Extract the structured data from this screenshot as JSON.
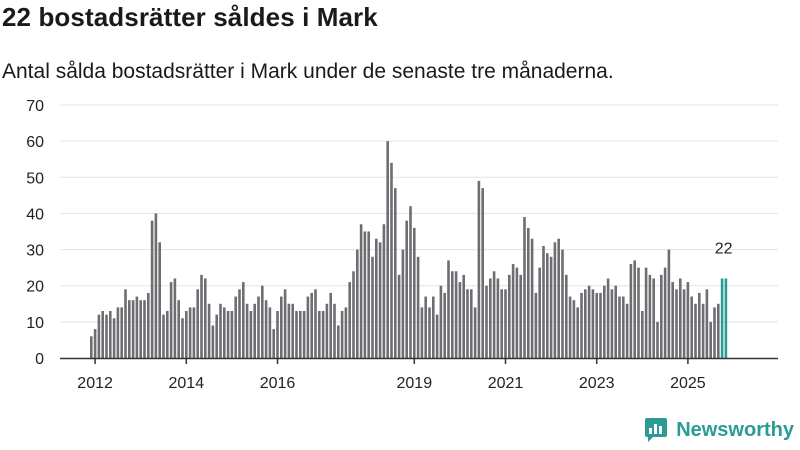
{
  "title": "22 bostadsrätter såldes i Mark",
  "subtitle": "Antal sålda bostadsrätter i Mark under de senaste tre månaderna.",
  "brand": {
    "name": "Newsworthy",
    "color": "#2b9b94"
  },
  "colors": {
    "bar": "#6e6d72",
    "highlight": "#2b9b94",
    "grid": "#e3e3e3",
    "axis": "#333333"
  },
  "chart_data": {
    "type": "bar",
    "title": "22 bostadsrätter såldes i Mark",
    "xlabel": "",
    "ylabel": "",
    "ylim": [
      0,
      70
    ],
    "yticks": [
      0,
      10,
      20,
      30,
      40,
      50,
      60,
      70
    ],
    "grid": true,
    "x_tick_labels": [
      {
        "label": "2012",
        "index": 1
      },
      {
        "label": "2014",
        "index": 25
      },
      {
        "label": "2016",
        "index": 49
      },
      {
        "label": "2019",
        "index": 85
      },
      {
        "label": "2021",
        "index": 109
      },
      {
        "label": "2023",
        "index": 133
      },
      {
        "label": "2025",
        "index": 157
      }
    ],
    "values": [
      6,
      8,
      12,
      13,
      12,
      13,
      11,
      14,
      14,
      19,
      16,
      16,
      17,
      16,
      16,
      18,
      38,
      40,
      32,
      12,
      13,
      21,
      22,
      16,
      11,
      13,
      14,
      14,
      19,
      23,
      22,
      15,
      9,
      12,
      15,
      14,
      13,
      13,
      17,
      19,
      21,
      15,
      13,
      15,
      17,
      20,
      16,
      14,
      8,
      13,
      17,
      19,
      15,
      15,
      13,
      13,
      13,
      17,
      18,
      19,
      13,
      13,
      15,
      18,
      15,
      9,
      13,
      14,
      21,
      24,
      30,
      37,
      35,
      35,
      28,
      33,
      32,
      37,
      60,
      54,
      47,
      23,
      30,
      38,
      42,
      36,
      28,
      14,
      17,
      14,
      17,
      12,
      20,
      18,
      27,
      24,
      24,
      21,
      23,
      19,
      19,
      14,
      49,
      47,
      20,
      22,
      24,
      22,
      19,
      19,
      23,
      26,
      25,
      23,
      39,
      36,
      33,
      18,
      25,
      31,
      29,
      28,
      32,
      33,
      30,
      23,
      17,
      16,
      14,
      18,
      19,
      20,
      19,
      18,
      18,
      20,
      22,
      19,
      20,
      17,
      17,
      15,
      26,
      27,
      25,
      13,
      25,
      23,
      22,
      10,
      23,
      25,
      30,
      21,
      19,
      22,
      19,
      21,
      17,
      15,
      18,
      15,
      19,
      10,
      14,
      15,
      22,
      22
    ],
    "highlight_last": 2,
    "last_label": "22"
  }
}
